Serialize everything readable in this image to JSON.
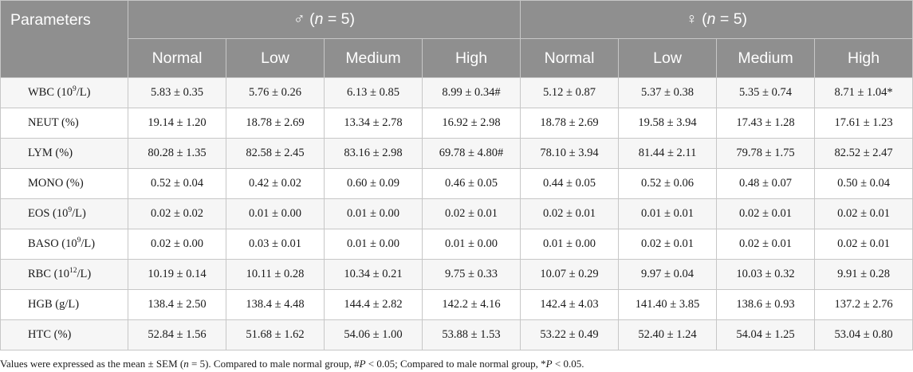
{
  "table": {
    "param_header": "Parameters",
    "groups": [
      {
        "symbol": "♂",
        "n_prefix": " (",
        "n_var": "n",
        "n_suffix": " = 5)"
      },
      {
        "symbol": "♀",
        "n_prefix": " (",
        "n_var": "n",
        "n_suffix": " = 5)"
      }
    ],
    "dose_labels": [
      "Normal",
      "Low",
      "Medium",
      "High",
      "Normal",
      "Low",
      "Medium",
      "High"
    ],
    "rows": [
      {
        "name": "WBC (10",
        "sup": "9",
        "unit": "/L)",
        "values": [
          "5.83 ± 0.35",
          "5.76 ± 0.26",
          "6.13 ± 0.85",
          "8.99 ± 0.34#",
          "5.12 ± 0.87",
          "5.37 ± 0.38",
          "5.35 ± 0.74",
          "8.71 ± 1.04*"
        ]
      },
      {
        "name": "NEUT (%)",
        "sup": "",
        "unit": "",
        "values": [
          "19.14 ± 1.20",
          "18.78 ± 2.69",
          "13.34 ± 2.78",
          "16.92 ± 2.98",
          "18.78 ± 2.69",
          "19.58 ± 3.94",
          "17.43 ± 1.28",
          "17.61 ± 1.23"
        ]
      },
      {
        "name": "LYM (%)",
        "sup": "",
        "unit": "",
        "values": [
          "80.28 ± 1.35",
          "82.58 ± 2.45",
          "83.16 ± 2.98",
          "69.78 ± 4.80#",
          "78.10 ± 3.94",
          "81.44 ± 2.11",
          "79.78 ± 1.75",
          "82.52 ± 2.47"
        ]
      },
      {
        "name": "MONO (%)",
        "sup": "",
        "unit": "",
        "values": [
          "0.52 ± 0.04",
          "0.42 ± 0.02",
          "0.60 ± 0.09",
          "0.46 ± 0.05",
          "0.44 ± 0.05",
          "0.52 ± 0.06",
          "0.48 ± 0.07",
          "0.50 ± 0.04"
        ]
      },
      {
        "name": "EOS (10",
        "sup": "9",
        "unit": "/L)",
        "values": [
          "0.02 ± 0.02",
          "0.01 ± 0.00",
          "0.01 ± 0.00",
          "0.02 ± 0.01",
          "0.02 ± 0.01",
          "0.01 ± 0.01",
          "0.02 ± 0.01",
          "0.02 ± 0.01"
        ]
      },
      {
        "name": "BASO (10",
        "sup": "9",
        "unit": "/L)",
        "values": [
          "0.02 ± 0.00",
          "0.03 ± 0.01",
          "0.01 ± 0.00",
          "0.01 ± 0.00",
          "0.01 ± 0.00",
          "0.02 ± 0.01",
          "0.02 ± 0.01",
          "0.02 ± 0.01"
        ]
      },
      {
        "name": "RBC (10",
        "sup": "12",
        "unit": "/L)",
        "values": [
          "10.19 ± 0.14",
          "10.11 ± 0.28",
          "10.34 ± 0.21",
          "9.75 ± 0.33",
          "10.07 ± 0.29",
          "9.97 ± 0.04",
          "10.03 ± 0.32",
          "9.91 ± 0.28"
        ]
      },
      {
        "name": "HGB (g/L)",
        "sup": "",
        "unit": "",
        "values": [
          "138.4 ± 2.50",
          "138.4 ± 4.48",
          "144.4 ± 2.82",
          "142.2 ± 4.16",
          "142.4 ± 4.03",
          "141.40 ± 3.85",
          "138.6 ± 0.93",
          "137.2 ± 2.76"
        ]
      },
      {
        "name": "HTC (%)",
        "sup": "",
        "unit": "",
        "values": [
          "52.84 ± 1.56",
          "51.68 ± 1.62",
          "54.06 ± 1.00",
          "53.88 ± 1.53",
          "53.22 ± 0.49",
          "52.40 ± 1.24",
          "54.04 ± 1.25",
          "53.04 ± 0.80"
        ]
      }
    ]
  },
  "footnote": {
    "part1": "Values were expressed as the mean ± SEM (",
    "n_var": "n",
    "part2": " = 5). Compared to male normal group, #",
    "p1": "P",
    "part3": " < 0.05; Compared to male normal group, *",
    "p2": "P",
    "part4": " < 0.05."
  }
}
